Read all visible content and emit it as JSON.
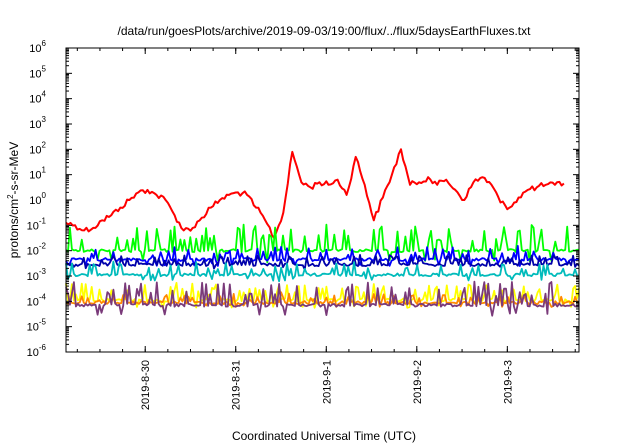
{
  "chart_data": {
    "type": "line",
    "title": "/data/run/goesPlots/archive/2019-09-03/19:00/flux/../flux/5daysEarthFluxes.txt",
    "xlabel": "Coordinated Universal Time (UTC)",
    "ylabel_parts": [
      "protons/cm",
      "2",
      "-s-sr-MeV"
    ],
    "yscale": "log",
    "ylim_exp": [
      -6,
      6
    ],
    "y_ticks": [
      {
        "base": "10",
        "exp": "-6"
      },
      {
        "base": "10",
        "exp": "-5"
      },
      {
        "base": "10",
        "exp": "-4"
      },
      {
        "base": "10",
        "exp": "-3"
      },
      {
        "base": "10",
        "exp": "-2"
      },
      {
        "base": "10",
        "exp": "-1"
      },
      {
        "base": "10",
        "exp": "0"
      },
      {
        "base": "10",
        "exp": "1"
      },
      {
        "base": "10",
        "exp": "2"
      },
      {
        "base": "10",
        "exp": "3"
      },
      {
        "base": "10",
        "exp": "4"
      },
      {
        "base": "10",
        "exp": "5"
      },
      {
        "base": "10",
        "exp": "6"
      }
    ],
    "xlim": [
      "2019-08-29 03:00",
      "2019-09-03 19:00"
    ],
    "x_ticks": [
      {
        "label": "2019-8-30",
        "value": "2019-08-30 00:00"
      },
      {
        "label": "2019-8-31",
        "value": "2019-08-31 00:00"
      },
      {
        "label": "2019-9-1",
        "value": "2019-09-01 00:00"
      },
      {
        "label": "2019-9-2",
        "value": "2019-09-02 00:00"
      },
      {
        "label": "2019-9-3",
        "value": "2019-09-03 00:00"
      }
    ],
    "grid": false,
    "legend": "none",
    "series": [
      {
        "color": "#ff0000",
        "log_flux": [
          [
            0.0,
            -0.9
          ],
          [
            0.1,
            -1.0
          ],
          [
            0.2,
            -1.2
          ],
          [
            0.3,
            -1.1
          ],
          [
            0.4,
            -0.8
          ],
          [
            0.5,
            -0.6
          ],
          [
            0.6,
            -0.3
          ],
          [
            0.7,
            0.0
          ],
          [
            0.8,
            0.3
          ],
          [
            0.9,
            0.4
          ],
          [
            1.0,
            0.2
          ],
          [
            1.1,
            0.0
          ],
          [
            1.2,
            -0.6
          ],
          [
            1.3,
            -1.2
          ],
          [
            1.4,
            -1.1
          ],
          [
            1.5,
            -0.7
          ],
          [
            1.6,
            -0.3
          ],
          [
            1.7,
            0.0
          ],
          [
            1.8,
            0.2
          ],
          [
            1.9,
            0.3
          ],
          [
            2.0,
            0.2
          ],
          [
            2.1,
            -0.3
          ],
          [
            2.2,
            -0.8
          ],
          [
            2.3,
            -1.5
          ],
          [
            2.4,
            -0.5
          ],
          [
            2.5,
            1.9
          ],
          [
            2.6,
            0.7
          ],
          [
            2.7,
            0.5
          ],
          [
            2.8,
            0.7
          ],
          [
            2.9,
            0.6
          ],
          [
            3.0,
            0.8
          ],
          [
            3.1,
            0.2
          ],
          [
            3.2,
            1.7
          ],
          [
            3.3,
            0.6
          ],
          [
            3.4,
            -0.8
          ],
          [
            3.5,
            0.1
          ],
          [
            3.6,
            1.0
          ],
          [
            3.7,
            2.0
          ],
          [
            3.8,
            0.6
          ],
          [
            3.9,
            0.7
          ],
          [
            4.0,
            0.9
          ],
          [
            4.1,
            0.6
          ],
          [
            4.2,
            0.8
          ],
          [
            4.3,
            0.4
          ],
          [
            4.4,
            0.0
          ],
          [
            4.5,
            0.7
          ],
          [
            4.6,
            0.9
          ],
          [
            4.7,
            0.6
          ],
          [
            4.8,
            -0.1
          ],
          [
            4.9,
            -0.3
          ],
          [
            5.0,
            0.1
          ],
          [
            5.1,
            0.4
          ],
          [
            5.2,
            0.5
          ],
          [
            5.3,
            0.6
          ],
          [
            5.4,
            0.6
          ],
          [
            5.5,
            0.65
          ]
        ]
      },
      {
        "color": "#00ff00",
        "base": -2.0,
        "spike": 1.0
      },
      {
        "color": "#0000ff",
        "base": -2.35,
        "spike": 0.5
      },
      {
        "color": "#0000aa",
        "base": -2.55,
        "spike": 0.35
      },
      {
        "color": "#00bbbb",
        "base": -2.95,
        "spike": 0.5
      },
      {
        "color": "#ffff00",
        "base": -3.95,
        "spike": 0.65
      },
      {
        "color": "#ff8800",
        "base": -4.05,
        "spike": 0.35
      },
      {
        "color": "#7a3a7a",
        "base": -4.15,
        "spike": 0.9
      }
    ]
  }
}
